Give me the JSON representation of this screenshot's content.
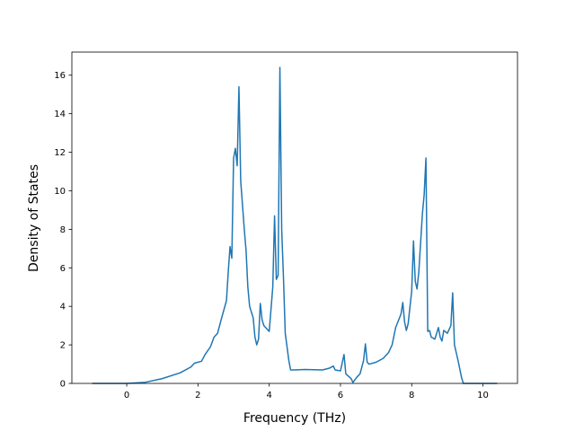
{
  "chart_data": {
    "type": "line",
    "x_label": "Frequency (THz)",
    "y_label": "Density of States",
    "color": "#1f77b4",
    "x": [
      -0.97,
      0,
      0.5,
      1.0,
      1.5,
      1.8,
      1.9,
      2.1,
      2.2,
      2.35,
      2.45,
      2.55,
      2.65,
      2.8,
      2.85,
      2.9,
      2.95,
      3.0,
      3.05,
      3.1,
      3.15,
      3.2,
      3.3,
      3.35,
      3.4,
      3.45,
      3.55,
      3.6,
      3.65,
      3.7,
      3.75,
      3.8,
      3.85,
      4.0,
      4.1,
      4.15,
      4.2,
      4.25,
      4.3,
      4.35,
      4.4,
      4.45,
      4.55,
      4.6,
      4.7,
      5.0,
      5.5,
      5.7,
      5.8,
      5.85,
      6.0,
      6.1,
      6.15,
      6.3,
      6.35,
      6.45,
      6.55,
      6.65,
      6.7,
      6.75,
      6.8,
      7.0,
      7.2,
      7.35,
      7.45,
      7.55,
      7.7,
      7.75,
      7.8,
      7.85,
      7.9,
      8.0,
      8.05,
      8.1,
      8.15,
      8.2,
      8.3,
      8.35,
      8.4,
      8.45,
      8.5,
      8.55,
      8.65,
      8.75,
      8.8,
      8.85,
      8.9,
      9.0,
      9.1,
      9.15,
      9.2,
      9.3,
      9.4,
      9.45,
      10.4
    ],
    "values": [
      0,
      0,
      0.05,
      0.25,
      0.55,
      0.85,
      1.05,
      1.15,
      1.5,
      1.9,
      2.4,
      2.6,
      3.3,
      4.3,
      5.8,
      7.1,
      6.5,
      11.7,
      12.2,
      11.3,
      15.4,
      10.5,
      8.0,
      6.9,
      5.0,
      4.0,
      3.4,
      2.4,
      2.0,
      2.3,
      4.15,
      3.3,
      3.0,
      2.7,
      5.0,
      8.7,
      5.4,
      5.6,
      16.4,
      8.0,
      5.5,
      2.6,
      1.2,
      0.7,
      0.7,
      0.72,
      0.7,
      0.8,
      0.9,
      0.7,
      0.65,
      1.5,
      0.5,
      0.25,
      0.05,
      0.3,
      0.5,
      1.2,
      2.05,
      1.1,
      1.0,
      1.1,
      1.3,
      1.6,
      2.0,
      2.9,
      3.6,
      4.2,
      3.2,
      2.75,
      3.1,
      4.8,
      7.4,
      5.3,
      4.9,
      5.8,
      8.8,
      9.8,
      11.7,
      2.7,
      2.75,
      2.4,
      2.3,
      2.9,
      2.4,
      2.2,
      2.75,
      2.6,
      3.0,
      4.7,
      2.0,
      1.2,
      0.3,
      0,
      0
    ],
    "xlim": [
      -1.54,
      10.97
    ],
    "ylim": [
      0,
      17.2
    ],
    "xticks": [
      0,
      2,
      4,
      6,
      8,
      10
    ],
    "yticks": [
      0,
      2,
      4,
      6,
      8,
      10,
      12,
      14,
      16
    ]
  }
}
